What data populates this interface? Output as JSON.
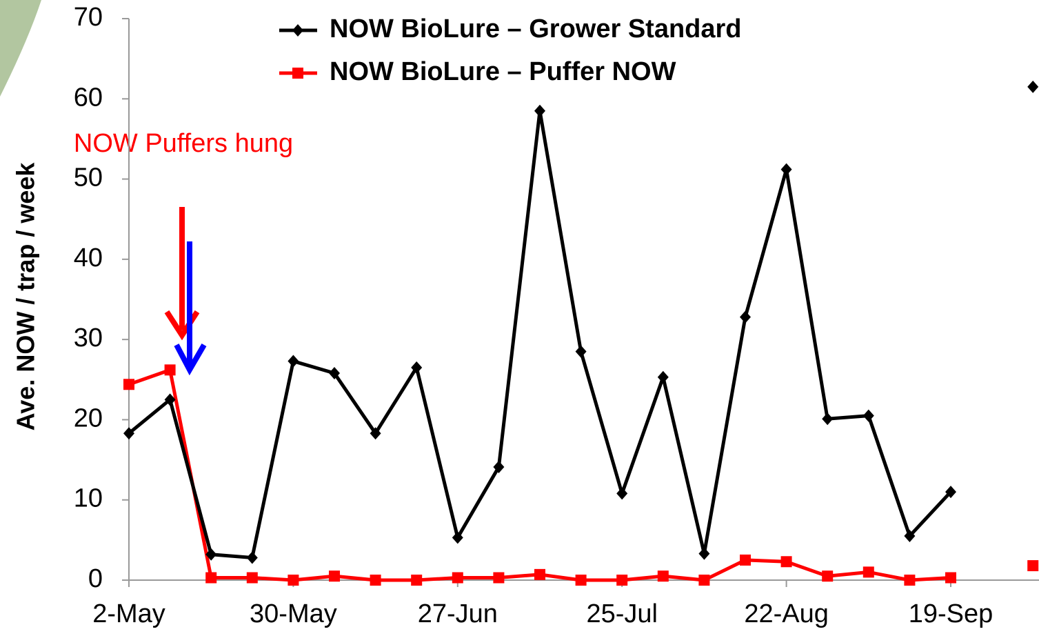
{
  "chart_data": {
    "type": "line",
    "y_axis_label": "Ave. NOW / trap / week",
    "annotation": "NOW Puffers hung",
    "categories": [
      "2-May",
      null,
      null,
      null,
      "30-May",
      null,
      null,
      null,
      "27-Jun",
      null,
      null,
      null,
      "25-Jul",
      null,
      null,
      null,
      "22-Aug",
      null,
      null,
      null,
      "19-Sep",
      null,
      null
    ],
    "series": [
      {
        "name": "NOW BioLure – Grower Standard",
        "color": "#000000",
        "marker": "diamond",
        "values": [
          18.3,
          22.5,
          3.2,
          2.8,
          27.3,
          25.8,
          18.3,
          26.5,
          5.3,
          14.1,
          58.5,
          28.5,
          10.8,
          25.3,
          3.3,
          32.8,
          51.2,
          20.1,
          20.5,
          5.5,
          11,
          null,
          61.5
        ]
      },
      {
        "name": "NOW BioLure – Puffer NOW",
        "color": "#ff0000",
        "marker": "square",
        "values": [
          24.4,
          26.2,
          0.3,
          0.3,
          0,
          0.5,
          0,
          0,
          0.3,
          0.3,
          0.7,
          0,
          0,
          0.5,
          0,
          2.5,
          2.3,
          0.5,
          1,
          0,
          0.3,
          null,
          1.8
        ]
      }
    ],
    "ylim": [
      0,
      70
    ],
    "yticks": [
      0,
      10,
      20,
      30,
      40,
      50,
      60,
      70
    ],
    "legend": "top"
  }
}
